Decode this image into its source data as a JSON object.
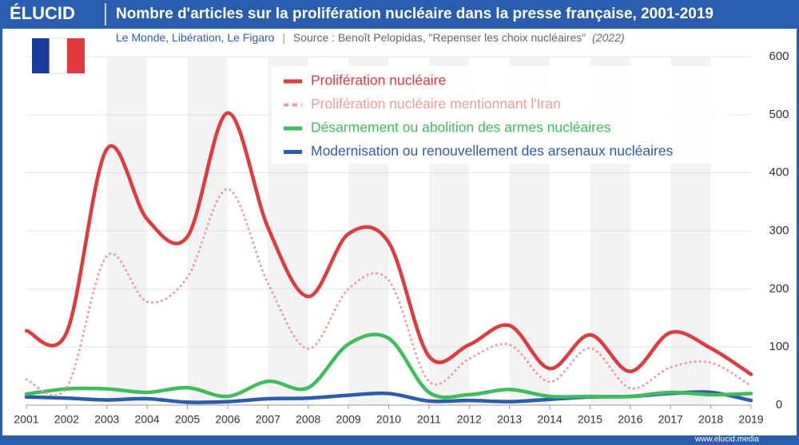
{
  "header": {
    "logo": "ÉLUCID",
    "footer": "www.elucid.media"
  },
  "chart_data": {
    "type": "line",
    "title": "Nombre d'articles sur la prolifération nucléaire dans la presse française, 2001-2019",
    "subtitle": "Le Monde, Libération, Le Figaro",
    "source": "Source : Benoît Pelopidas, \"Repenser les choix nucléaires\"",
    "source_year": "(2022)",
    "x": [
      2001,
      2002,
      2003,
      2004,
      2005,
      2006,
      2007,
      2008,
      2009,
      2010,
      2011,
      2012,
      2013,
      2014,
      2015,
      2016,
      2017,
      2018,
      2019
    ],
    "xlim": [
      2001,
      2019
    ],
    "ylim": [
      0,
      600
    ],
    "yticks": [
      0,
      100,
      200,
      300,
      400,
      500,
      600
    ],
    "grid": true,
    "legend": "top",
    "series": [
      {
        "name": "Prolifération nucléaire",
        "color": "#e0393e",
        "style": "solid",
        "values": [
          128,
          125,
          441,
          320,
          290,
          503,
          306,
          187,
          295,
          280,
          84,
          104,
          137,
          63,
          121,
          58,
          125,
          98,
          53
        ]
      },
      {
        "name": "Prolifération nucléaire mentionnant l'Iran",
        "color": "#f09a9a",
        "style": "dotted",
        "values": [
          44,
          30,
          257,
          178,
          220,
          372,
          210,
          97,
          200,
          215,
          41,
          80,
          104,
          40,
          98,
          29,
          65,
          73,
          33
        ]
      },
      {
        "name": "Désarmement ou abolition des armes nucléaires",
        "color": "#3cbf5a",
        "style": "solid",
        "values": [
          19,
          28,
          28,
          22,
          30,
          15,
          41,
          30,
          105,
          115,
          22,
          18,
          27,
          15,
          15,
          15,
          22,
          18,
          20
        ]
      },
      {
        "name": "Modernisation ou renouvellement des arsenaux nucléaires",
        "color": "#2a5db0",
        "style": "solid",
        "values": [
          14,
          12,
          9,
          11,
          5,
          6,
          11,
          12,
          17,
          20,
          7,
          8,
          6,
          10,
          14,
          15,
          20,
          22,
          8
        ]
      }
    ]
  }
}
